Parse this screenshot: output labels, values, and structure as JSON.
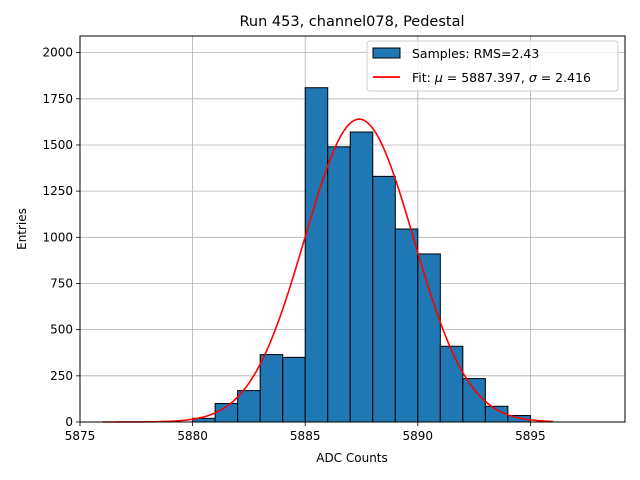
{
  "chart_data": {
    "type": "bar",
    "title": "Run 453, channel078, Pedestal",
    "xlabel": "ADC Counts",
    "ylabel": "Entries",
    "xlim": [
      5875,
      5899.2
    ],
    "ylim": [
      0,
      2090
    ],
    "x_ticks": [
      5875,
      5880,
      5885,
      5890,
      5895
    ],
    "y_ticks": [
      0,
      250,
      500,
      750,
      1000,
      1250,
      1500,
      1750,
      2000
    ],
    "grid": true,
    "legend_position": "top-right",
    "histogram": {
      "name": "Samples: RMS=2.43",
      "color": "#1f77b4",
      "bins": [
        {
          "left": 5880,
          "right": 5881,
          "value": 20
        },
        {
          "left": 5881,
          "right": 5882,
          "value": 100
        },
        {
          "left": 5882,
          "right": 5883,
          "value": 170
        },
        {
          "left": 5883,
          "right": 5884,
          "value": 365
        },
        {
          "left": 5884,
          "right": 5885,
          "value": 350
        },
        {
          "left": 5885,
          "right": 5886,
          "value": 1810
        },
        {
          "left": 5886,
          "right": 5887,
          "value": 1490
        },
        {
          "left": 5887,
          "right": 5888,
          "value": 1570
        },
        {
          "left": 5888,
          "right": 5889,
          "value": 1330
        },
        {
          "left": 5889,
          "right": 5890,
          "value": 1045
        },
        {
          "left": 5890,
          "right": 5891,
          "value": 910
        },
        {
          "left": 5891,
          "right": 5892,
          "value": 410
        },
        {
          "left": 5892,
          "right": 5893,
          "value": 235
        },
        {
          "left": 5893,
          "right": 5894,
          "value": 85
        },
        {
          "left": 5894,
          "right": 5895,
          "value": 35
        }
      ]
    },
    "fit": {
      "name": "Fit: μ = 5887.397, σ = 2.416",
      "legend_prefix": "Fit: ",
      "legend_mu_symbol": "μ",
      "legend_mu_text": " = 5887.397, ",
      "legend_sigma_symbol": "σ",
      "legend_sigma_text": " = 2.416",
      "color": "#ff0000",
      "mu": 5887.397,
      "sigma": 2.416,
      "amplitude": 1640,
      "x_range": [
        5876,
        5896
      ]
    }
  }
}
